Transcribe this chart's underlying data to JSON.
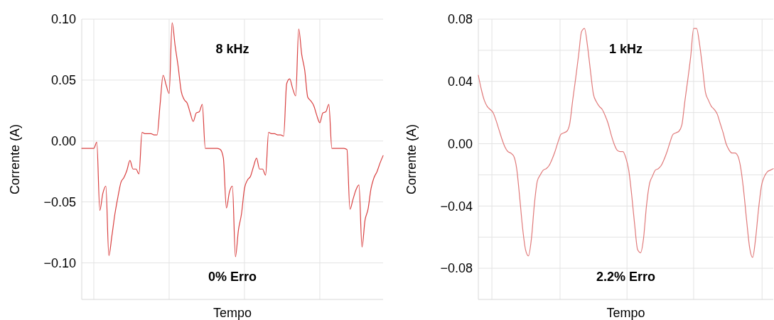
{
  "chart_data": [
    {
      "type": "line",
      "title": "8 kHz",
      "annotations": [
        "0% Erro"
      ],
      "xlabel": "Tempo",
      "ylabel": "Corrente (A)",
      "ylim": [
        -0.13,
        0.1
      ],
      "tick_labels": "y",
      "grid": true,
      "categories": [
        null,
        null,
        null,
        null,
        null,
        null,
        null,
        null,
        null,
        null,
        null,
        null,
        null,
        null,
        null,
        null,
        null,
        null,
        null,
        null,
        null,
        null,
        null,
        null,
        null,
        null,
        null,
        null,
        null,
        null,
        null,
        null,
        null,
        null,
        null,
        null,
        null,
        null,
        null,
        null,
        null,
        null,
        null,
        null,
        null,
        null,
        null,
        null,
        null,
        null,
        null,
        null,
        null,
        null,
        null,
        null,
        null,
        null,
        null,
        null,
        null,
        null,
        null,
        null,
        null,
        null,
        null,
        null,
        null,
        null,
        null,
        null,
        null,
        null,
        null,
        null,
        null,
        null,
        null,
        null,
        null,
        null,
        null,
        null,
        null,
        null,
        null,
        null,
        null,
        null,
        null,
        null,
        null,
        null,
        null,
        null,
        null,
        null,
        null,
        null,
        null
      ],
      "yticks": [
        {
          "value": -0.1,
          "label": "−0.10"
        },
        {
          "value": -0.05,
          "label": "−0.05"
        },
        {
          "value": 0,
          "label": "0.00"
        },
        {
          "value": 0.05,
          "label": "0.05"
        },
        {
          "value": 0.1,
          "label": "0.10"
        }
      ],
      "series": [
        {
          "color": "#d94040",
          "values": [
            -0.006,
            -0.006,
            -0.006,
            -0.006,
            -0.006,
            -0.001,
            -0.057,
            -0.043,
            -0.037,
            -0.094,
            -0.078,
            -0.06,
            -0.046,
            -0.034,
            -0.03,
            -0.024,
            -0.016,
            -0.023,
            -0.023,
            -0.027,
            0.007,
            0.006,
            0.006,
            0.006,
            0.005,
            0.005,
            0.03,
            0.054,
            0.046,
            0.039,
            0.097,
            0.078,
            0.061,
            0.041,
            0.034,
            0.031,
            0.023,
            0.016,
            0.023,
            0.024,
            0.03,
            -0.006,
            -0.006,
            -0.006,
            -0.006,
            -0.006,
            -0.007,
            -0.014,
            -0.055,
            -0.042,
            -0.037,
            -0.095,
            -0.073,
            -0.06,
            -0.039,
            -0.032,
            -0.029,
            -0.021,
            -0.014,
            -0.023,
            -0.023,
            -0.028,
            0.007,
            0.006,
            0.006,
            0.005,
            0.005,
            0.004,
            0.047,
            0.051,
            0.043,
            0.037,
            0.092,
            0.071,
            0.058,
            0.036,
            0.033,
            0.029,
            0.021,
            0.015,
            0.023,
            0.024,
            0.03,
            -0.006,
            -0.006,
            -0.006,
            -0.006,
            -0.006,
            -0.007,
            -0.056,
            -0.048,
            -0.04,
            -0.036,
            -0.087,
            -0.065,
            -0.056,
            -0.039,
            -0.03,
            -0.025,
            -0.018,
            -0.012
          ]
        }
      ]
    },
    {
      "type": "line",
      "title": "1 kHz",
      "annotations": [
        "2.2% Erro"
      ],
      "xlabel": "Tempo",
      "ylabel": "Corrente (A)",
      "ylim": [
        -0.1,
        0.08
      ],
      "tick_labels": "y",
      "grid": true,
      "categories": [
        null,
        null,
        null,
        null,
        null,
        null,
        null,
        null,
        null,
        null,
        null,
        null,
        null,
        null,
        null,
        null,
        null,
        null,
        null,
        null,
        null,
        null,
        null,
        null,
        null,
        null,
        null,
        null,
        null,
        null,
        null,
        null,
        null,
        null,
        null,
        null,
        null,
        null,
        null,
        null,
        null,
        null,
        null,
        null,
        null,
        null,
        null,
        null,
        null,
        null,
        null,
        null,
        null,
        null,
        null,
        null,
        null,
        null,
        null,
        null,
        null,
        null,
        null,
        null,
        null,
        null,
        null,
        null,
        null,
        null,
        null,
        null,
        null,
        null,
        null,
        null,
        null,
        null,
        null,
        null,
        null,
        null,
        null,
        null,
        null,
        null,
        null,
        null,
        null,
        null,
        null,
        null,
        null,
        null,
        null,
        null,
        null,
        null,
        null,
        null,
        null
      ],
      "yticks": [
        {
          "value": -0.08,
          "label": "−0.08"
        },
        {
          "value": -0.06,
          "label": null
        },
        {
          "value": -0.04,
          "label": "−0.04"
        },
        {
          "value": -0.02,
          "label": null
        },
        {
          "value": 0,
          "label": "0.00"
        },
        {
          "value": 0.02,
          "label": null
        },
        {
          "value": 0.04,
          "label": "0.04"
        },
        {
          "value": 0.06,
          "label": null
        },
        {
          "value": 0.08,
          "label": "0.08"
        }
      ],
      "series": [
        {
          "color": "#e07a7a",
          "values": [
            0.044,
            0.035,
            0.028,
            0.024,
            0.022,
            0.02,
            0.015,
            0.009,
            0.003,
            -0.002,
            -0.005,
            -0.006,
            -0.008,
            -0.016,
            -0.034,
            -0.054,
            -0.068,
            -0.072,
            -0.061,
            -0.039,
            -0.024,
            -0.02,
            -0.017,
            -0.016,
            -0.014,
            -0.01,
            -0.005,
            0.001,
            0.006,
            0.007,
            0.008,
            0.013,
            0.028,
            0.042,
            0.057,
            0.072,
            0.074,
            0.063,
            0.047,
            0.032,
            0.027,
            0.024,
            0.022,
            0.018,
            0.013,
            0.006,
            0.0,
            -0.004,
            -0.005,
            -0.005,
            -0.009,
            -0.017,
            -0.033,
            -0.052,
            -0.068,
            -0.07,
            -0.061,
            -0.04,
            -0.026,
            -0.021,
            -0.017,
            -0.016,
            -0.014,
            -0.01,
            -0.005,
            0.001,
            0.006,
            0.007,
            0.008,
            0.012,
            0.027,
            0.041,
            0.056,
            0.074,
            0.074,
            0.064,
            0.049,
            0.033,
            0.028,
            0.024,
            0.022,
            0.019,
            0.013,
            0.007,
            0.0,
            -0.004,
            -0.006,
            -0.006,
            -0.008,
            -0.016,
            -0.031,
            -0.05,
            -0.067,
            -0.073,
            -0.061,
            -0.042,
            -0.027,
            -0.021,
            -0.018,
            -0.017,
            -0.016
          ]
        }
      ]
    }
  ]
}
